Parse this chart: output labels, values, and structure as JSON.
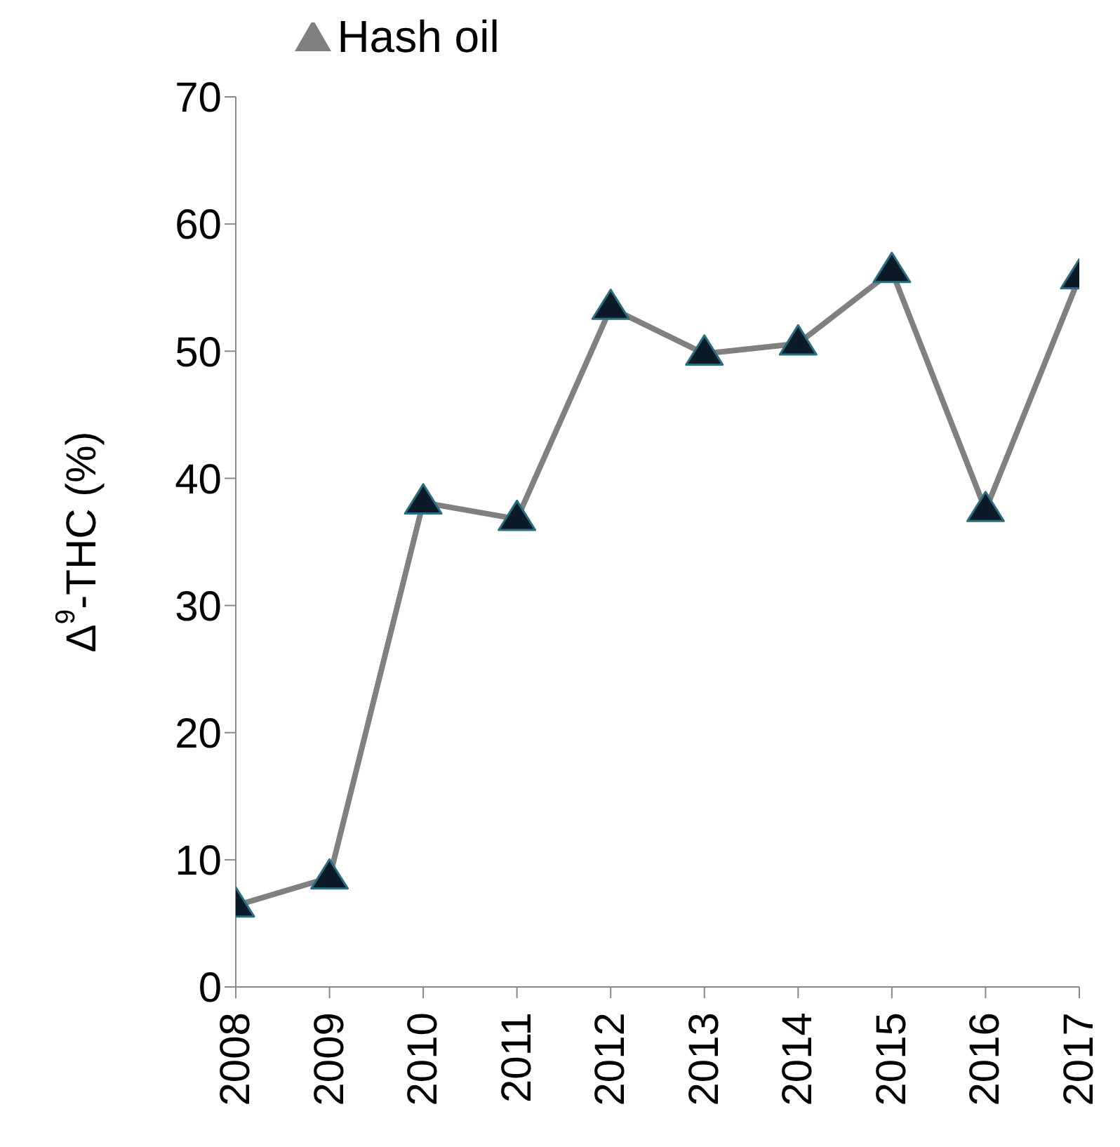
{
  "chart_data": {
    "type": "line",
    "ylabel": "Δ$^{9}$-THC (%)",
    "categories": [
      "2008",
      "2009",
      "2010",
      "2011",
      "2012",
      "2013",
      "2014",
      "2015",
      "2016",
      "2017"
    ],
    "series": [
      {
        "name": "Hash oil",
        "color": "#808080",
        "values": [
          6.4,
          8.6,
          38.1,
          36.8,
          53.4,
          49.8,
          50.6,
          56.3,
          37.5,
          55.8
        ]
      }
    ],
    "ylim": [
      0,
      70
    ],
    "yticks": [
      0,
      10,
      20,
      30,
      40,
      50,
      60,
      70
    ],
    "grid": false,
    "legend": "top",
    "marker": "triangle",
    "line_style": "solid"
  }
}
